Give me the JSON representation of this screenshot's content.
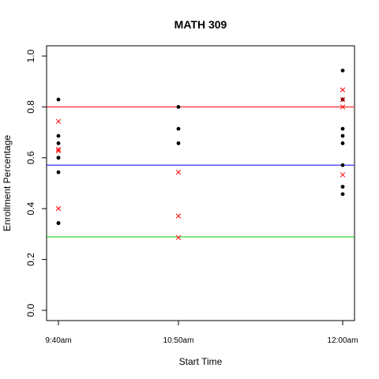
{
  "chart_data": {
    "type": "scatter",
    "title": "MATH 309",
    "xlabel": "Start Time",
    "ylabel": "Enrollment Percentage",
    "ylim": [
      0.0,
      1.0
    ],
    "yticks": [
      "0.0",
      "0.2",
      "0.4",
      "0.6",
      "0.8",
      "1.0"
    ],
    "categories": [
      "9:40am",
      "10:50am",
      "12:00am"
    ],
    "grid": false,
    "series": [
      {
        "marker": "dot",
        "color": "#000000",
        "points": [
          {
            "x": "9:40am",
            "y": 0.829
          },
          {
            "x": "9:40am",
            "y": 0.686
          },
          {
            "x": "9:40am",
            "y": 0.657
          },
          {
            "x": "9:40am",
            "y": 0.6
          },
          {
            "x": "9:40am",
            "y": 0.6
          },
          {
            "x": "9:40am",
            "y": 0.543
          },
          {
            "x": "9:40am",
            "y": 0.343
          },
          {
            "x": "9:40am",
            "y": 0.343
          },
          {
            "x": "10:50am",
            "y": 0.8
          },
          {
            "x": "10:50am",
            "y": 0.714
          },
          {
            "x": "10:50am",
            "y": 0.657
          },
          {
            "x": "12:00am",
            "y": 0.943
          },
          {
            "x": "12:00am",
            "y": 0.829
          },
          {
            "x": "12:00am",
            "y": 0.714
          },
          {
            "x": "12:00am",
            "y": 0.686
          },
          {
            "x": "12:00am",
            "y": 0.657
          },
          {
            "x": "12:00am",
            "y": 0.571
          },
          {
            "x": "12:00am",
            "y": 0.486
          },
          {
            "x": "12:00am",
            "y": 0.457
          }
        ]
      },
      {
        "marker": "cross",
        "color": "#ff0000",
        "points": [
          {
            "x": "9:40am",
            "y": 0.743
          },
          {
            "x": "9:40am",
            "y": 0.633
          },
          {
            "x": "9:40am",
            "y": 0.627
          },
          {
            "x": "9:40am",
            "y": 0.4
          },
          {
            "x": "10:50am",
            "y": 0.543
          },
          {
            "x": "10:50am",
            "y": 0.371
          },
          {
            "x": "10:50am",
            "y": 0.286
          },
          {
            "x": "12:00am",
            "y": 0.867
          },
          {
            "x": "12:00am",
            "y": 0.829
          },
          {
            "x": "12:00am",
            "y": 0.8
          },
          {
            "x": "12:00am",
            "y": 0.533
          }
        ]
      }
    ],
    "reference_lines": [
      {
        "y": 0.8,
        "color": "#ff0000"
      },
      {
        "y": 0.571,
        "color": "#0000ff"
      },
      {
        "y": 0.289,
        "color": "#00cc00"
      }
    ]
  }
}
